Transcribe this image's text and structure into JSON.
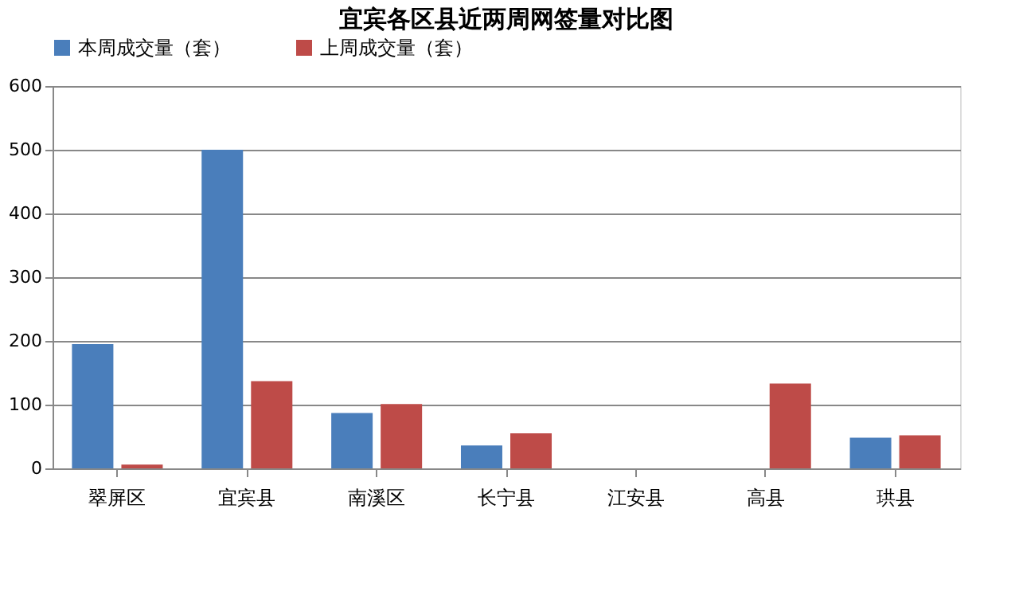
{
  "chart_data": {
    "type": "bar",
    "title": "宜宾各区县近两周网签量对比图",
    "categories": [
      "翠屏区",
      "宜宾县",
      "南溪区",
      "长宁县",
      "江安县",
      "高县",
      "珙县"
    ],
    "series": [
      {
        "name": "本周成交量（套）",
        "color": "#4a7ebb",
        "values": [
          195,
          500,
          87,
          36,
          null,
          null,
          48
        ]
      },
      {
        "name": "上周成交量（套）",
        "color": "#be4b48",
        "values": [
          6,
          137,
          101,
          55,
          null,
          133,
          52
        ]
      }
    ],
    "ylim": [
      0,
      600
    ],
    "yticks": [
      0,
      100,
      200,
      300,
      400,
      500,
      600
    ],
    "grid": "y",
    "legend": "top"
  }
}
